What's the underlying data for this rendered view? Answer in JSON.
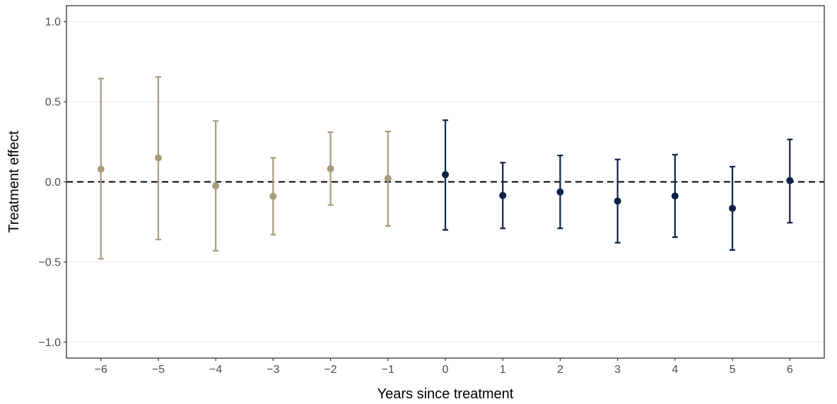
{
  "chart_data": {
    "type": "scatter",
    "subtype": "point-with-error-bars",
    "title": "",
    "xlabel": "Years since treatment",
    "ylabel": "Treatment effect",
    "xlim": [
      -6.6,
      6.6
    ],
    "ylim": [
      -1.1,
      1.1
    ],
    "x_ticks": [
      -6,
      -5,
      -4,
      -3,
      -2,
      -1,
      0,
      1,
      2,
      3,
      4,
      5,
      6
    ],
    "x_tick_labels": [
      "−6",
      "−5",
      "−4",
      "−3",
      "−2",
      "−1",
      "0",
      "1",
      "2",
      "3",
      "4",
      "5",
      "6"
    ],
    "y_ticks": [
      -1.0,
      -0.5,
      0.0,
      0.5,
      1.0
    ],
    "y_tick_labels": [
      "−1.0",
      "−0.5",
      "0.0",
      "0.5",
      "1.0"
    ],
    "grid": "horizontal-major",
    "reference_line": {
      "y": 0,
      "style": "dashed",
      "color": "#000000"
    },
    "colors": {
      "pre": "#a69b7c",
      "post": "#0c2246",
      "grid": "#ebebeb",
      "panel_border": "#333333"
    },
    "points": [
      {
        "x": -6,
        "y": 0.08,
        "lower": -0.48,
        "upper": 0.645,
        "group": "pre"
      },
      {
        "x": -5,
        "y": 0.15,
        "lower": -0.36,
        "upper": 0.655,
        "group": "pre"
      },
      {
        "x": -4,
        "y": -0.025,
        "lower": -0.43,
        "upper": 0.38,
        "group": "pre"
      },
      {
        "x": -3,
        "y": -0.09,
        "lower": -0.33,
        "upper": 0.15,
        "group": "pre"
      },
      {
        "x": -2,
        "y": 0.082,
        "lower": -0.145,
        "upper": 0.31,
        "group": "pre"
      },
      {
        "x": -1,
        "y": 0.022,
        "lower": -0.275,
        "upper": 0.315,
        "group": "pre"
      },
      {
        "x": 0,
        "y": 0.045,
        "lower": -0.3,
        "upper": 0.385,
        "group": "post"
      },
      {
        "x": 1,
        "y": -0.085,
        "lower": -0.29,
        "upper": 0.12,
        "group": "post"
      },
      {
        "x": 2,
        "y": -0.063,
        "lower": -0.29,
        "upper": 0.165,
        "group": "post"
      },
      {
        "x": 3,
        "y": -0.12,
        "lower": -0.38,
        "upper": 0.14,
        "group": "post"
      },
      {
        "x": 4,
        "y": -0.088,
        "lower": -0.345,
        "upper": 0.17,
        "group": "post"
      },
      {
        "x": 5,
        "y": -0.165,
        "lower": -0.425,
        "upper": 0.095,
        "group": "post"
      },
      {
        "x": 6,
        "y": 0.008,
        "lower": -0.255,
        "upper": 0.265,
        "group": "post"
      }
    ]
  }
}
